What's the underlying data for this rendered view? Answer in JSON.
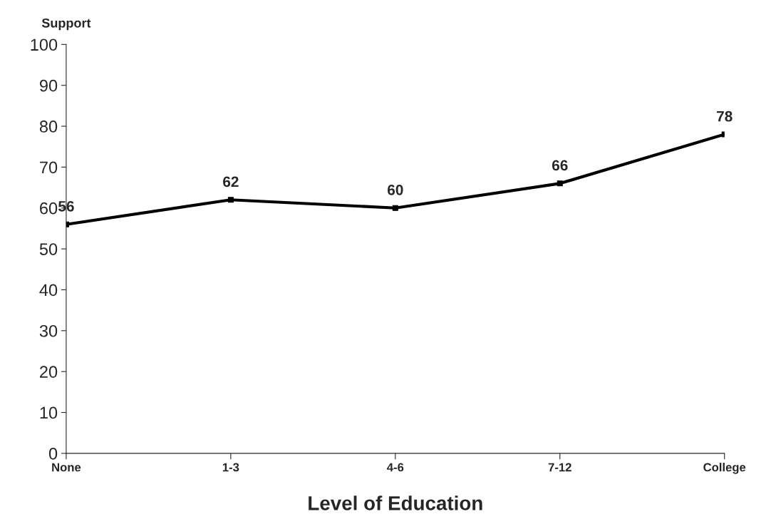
{
  "chart_data": {
    "type": "line",
    "ylabel": "Support",
    "xlabel": "Level of Education",
    "categories": [
      "None",
      "1-3",
      "4-6",
      "7-12",
      "College"
    ],
    "series": [
      {
        "color": "#000000",
        "values": [
          56,
          62,
          60,
          66,
          78
        ]
      }
    ],
    "ylim": [
      0,
      100
    ],
    "yticks": [
      0,
      10,
      20,
      30,
      40,
      50,
      60,
      70,
      80,
      90,
      100
    ],
    "grid": false,
    "marker": "square",
    "line_style": "solid",
    "data_labels": true
  }
}
